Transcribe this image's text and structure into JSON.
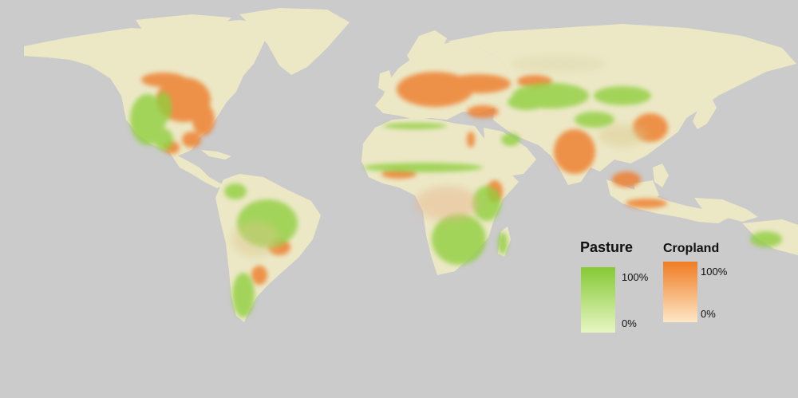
{
  "map": {
    "background_color": "#cbcbcb",
    "land_color": "#ece8c6",
    "pasture_color": "#8fcf3c",
    "cropland_color": "#ee7f2d"
  },
  "legend": {
    "pasture": {
      "title": "Pasture",
      "max_label": "100%",
      "min_label": "0%",
      "color_high": "#86c935",
      "color_low": "#e6f6c2"
    },
    "cropland": {
      "title": "Cropland",
      "max_label": "100%",
      "min_label": "0%",
      "color_high": "#f07c23",
      "color_low": "#fde7c6"
    }
  }
}
